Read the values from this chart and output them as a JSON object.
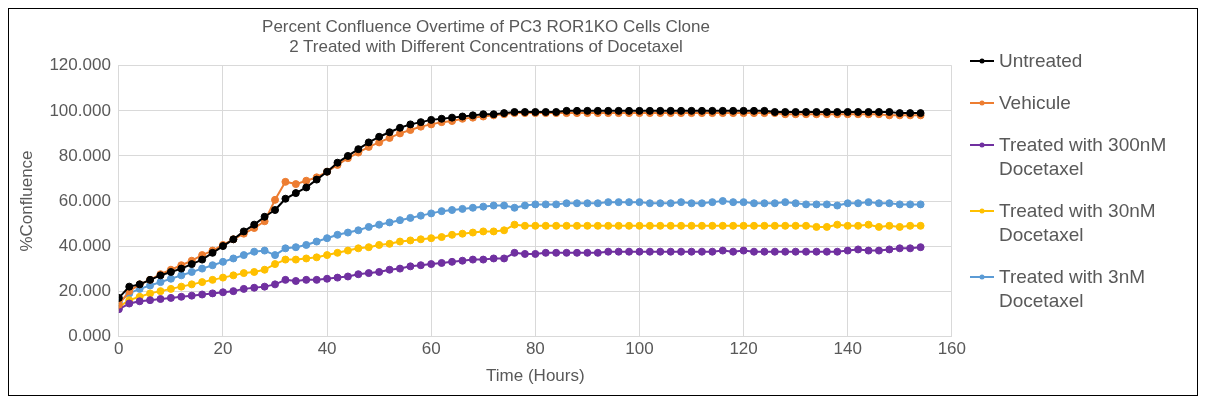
{
  "chart_data": {
    "type": "line",
    "title": "Percent Confluence Overtime of PC3 ROR1KO Cells Clone 2 Treated with Different Concentrations of Docetaxel",
    "xlabel": "Time (Hours)",
    "ylabel": "%Confluence",
    "x": [
      0,
      2,
      4,
      6,
      8,
      10,
      12,
      14,
      16,
      18,
      20,
      22,
      24,
      26,
      28,
      30,
      32,
      34,
      36,
      38,
      40,
      42,
      44,
      46,
      48,
      50,
      52,
      54,
      56,
      58,
      60,
      62,
      64,
      66,
      68,
      70,
      72,
      74,
      76,
      78,
      80,
      82,
      84,
      86,
      88,
      90,
      92,
      94,
      96,
      98,
      100,
      102,
      104,
      106,
      108,
      110,
      112,
      114,
      116,
      118,
      120,
      122,
      124,
      126,
      128,
      130,
      132,
      134,
      136,
      138,
      140,
      142,
      144,
      146,
      148,
      150,
      152,
      154
    ],
    "series": [
      {
        "name": "Untreated",
        "color": "#000000",
        "values": [
          17,
          22,
          23,
          25,
          27,
          28.5,
          30,
          32,
          34,
          37,
          40,
          43,
          46.5,
          49.5,
          53,
          56,
          61,
          63.5,
          66,
          69.5,
          73,
          77,
          80,
          83,
          86,
          88.5,
          90.5,
          92.5,
          94,
          95,
          96,
          96.5,
          97,
          97.5,
          98,
          98.5,
          98.5,
          99,
          99.5,
          99.5,
          99.5,
          99.5,
          99.5,
          100,
          100,
          100,
          100,
          100,
          100,
          100,
          100,
          100,
          100,
          100,
          100,
          100,
          100,
          100,
          100,
          100,
          100,
          100,
          100,
          99.5,
          99.5,
          99.5,
          99.5,
          99.5,
          99.5,
          99.5,
          99.5,
          99.5,
          99.5,
          99.5,
          99.5,
          99,
          99,
          99
        ]
      },
      {
        "name": "Vehicule",
        "color": "#ed7d31",
        "values": [
          14,
          20,
          23,
          25,
          27.5,
          29.5,
          31.5,
          33.5,
          36,
          38,
          40.5,
          43,
          45.5,
          48,
          51,
          60.5,
          68.5,
          67.5,
          69,
          70.5,
          73,
          76,
          79,
          81.5,
          84,
          86,
          88,
          90,
          91.5,
          93,
          94,
          95,
          95.5,
          96.5,
          97,
          97.5,
          98,
          98.5,
          99,
          99,
          99,
          99,
          99,
          99,
          99,
          99,
          99,
          99,
          99,
          99,
          99,
          99,
          99,
          99,
          99,
          99,
          99,
          99,
          99,
          99,
          99,
          99,
          99,
          99,
          98.5,
          98.5,
          98.5,
          98.5,
          98.5,
          98.5,
          98.5,
          98.5,
          98.5,
          98.5,
          98,
          98,
          98,
          98
        ]
      },
      {
        "name": "Treated with 300nM Docetaxel",
        "color": "#7030a0",
        "values": [
          12,
          14.5,
          15.5,
          16,
          16.5,
          17,
          17.5,
          18,
          18.5,
          19,
          19.5,
          20,
          21,
          21.5,
          22,
          23,
          25,
          24.5,
          25,
          25,
          25.5,
          26,
          26.5,
          27.5,
          28,
          28.5,
          29.5,
          30,
          31,
          31.5,
          32,
          32.5,
          33,
          33.5,
          34,
          34,
          34.5,
          34.5,
          37,
          36.5,
          36.5,
          37,
          37,
          37,
          37,
          37,
          37,
          37.5,
          37.5,
          37.5,
          37.5,
          37.5,
          37.5,
          37.5,
          37.5,
          37.5,
          37.5,
          37.5,
          38,
          37.5,
          38,
          37.5,
          37.5,
          37.5,
          37.5,
          37.5,
          37.5,
          37.5,
          37.5,
          37.5,
          38,
          38.5,
          38,
          38,
          38.5,
          39,
          39,
          39.5
        ]
      },
      {
        "name": "Treated with 30nM Docetaxel",
        "color": "#ffc000",
        "values": [
          13,
          16,
          17.5,
          19,
          20,
          21,
          22,
          23,
          24,
          25,
          26,
          27,
          28,
          28.5,
          29.5,
          32,
          34,
          34,
          34.5,
          35,
          36,
          37,
          38,
          39,
          39.5,
          40.5,
          41,
          42,
          42.5,
          43,
          43.5,
          44,
          45,
          45.5,
          46,
          46.5,
          46.5,
          47,
          49.5,
          49,
          49,
          49,
          49,
          49,
          49,
          49,
          49,
          49,
          49,
          49,
          49,
          49,
          49,
          49,
          49,
          49,
          49,
          49,
          49,
          49,
          49,
          49,
          49,
          49,
          49,
          49,
          49,
          48.5,
          48.5,
          49.5,
          49,
          49,
          49.5,
          48.5,
          49,
          48.5,
          49,
          49
        ]
      },
      {
        "name": "Treated with 3nM Docetaxel",
        "color": "#5b9bd5",
        "values": [
          15,
          19,
          21,
          22.5,
          24,
          25.5,
          27,
          28.5,
          30,
          31.5,
          33,
          34.5,
          36,
          37.5,
          38,
          36,
          39,
          39.5,
          40.5,
          42,
          43.5,
          45,
          46,
          47,
          48.5,
          49.5,
          50.5,
          51.5,
          52.5,
          53.5,
          54.5,
          55.5,
          56,
          56.5,
          57,
          57.5,
          58,
          58,
          57,
          58,
          58.5,
          58.5,
          58.5,
          59,
          59,
          59,
          59,
          59.5,
          59.5,
          59.5,
          59.5,
          59,
          59,
          59,
          59.5,
          59,
          59,
          59.5,
          60,
          59.5,
          59.5,
          59,
          59,
          59,
          59.5,
          59,
          58.5,
          58.5,
          58.5,
          58,
          59,
          59,
          59.5,
          59,
          59,
          58.5,
          58.5,
          58.5
        ]
      }
    ],
    "xlim": [
      0,
      160
    ],
    "xticks": [
      0,
      20,
      40,
      60,
      80,
      100,
      120,
      140,
      160
    ],
    "ylim": [
      0,
      120
    ],
    "yticks": [
      {
        "value": 0,
        "label": "0.000"
      },
      {
        "value": 20,
        "label": "20.000"
      },
      {
        "value": 40,
        "label": "40.000"
      },
      {
        "value": 60,
        "label": "60.000"
      },
      {
        "value": 80,
        "label": "80.000"
      },
      {
        "value": 100,
        "label": "100.000"
      },
      {
        "value": 120,
        "label": "120.000"
      }
    ],
    "grid": true,
    "legend": "right",
    "marker": "circle",
    "line_style": "solid"
  }
}
